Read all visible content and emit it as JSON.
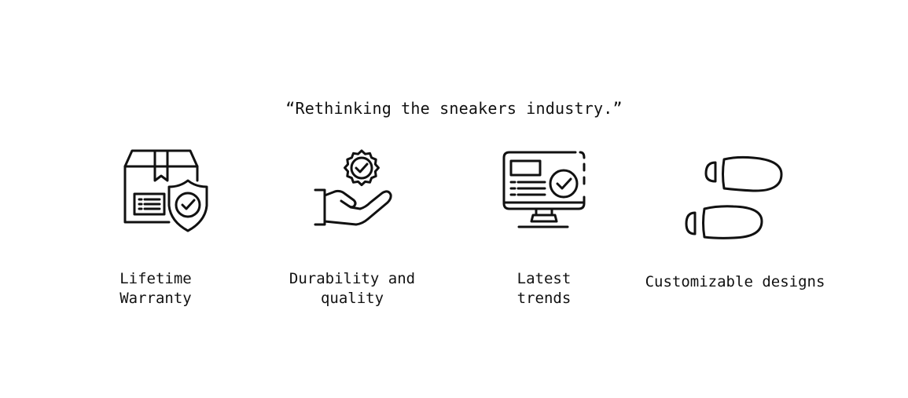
{
  "tagline": "“Rethinking the sneakers industry.”",
  "features": [
    {
      "icon": "package-shield-icon",
      "label": "Lifetime\nWarranty"
    },
    {
      "icon": "hand-badge-icon",
      "label": "Durability and\nquality"
    },
    {
      "icon": "monitor-check-icon",
      "label": "Latest\ntrends"
    },
    {
      "icon": "footprints-icon",
      "label": "Customizable designs"
    }
  ],
  "colors": {
    "text": "#111111",
    "icon_stroke": "#111111",
    "background": "#ffffff"
  }
}
